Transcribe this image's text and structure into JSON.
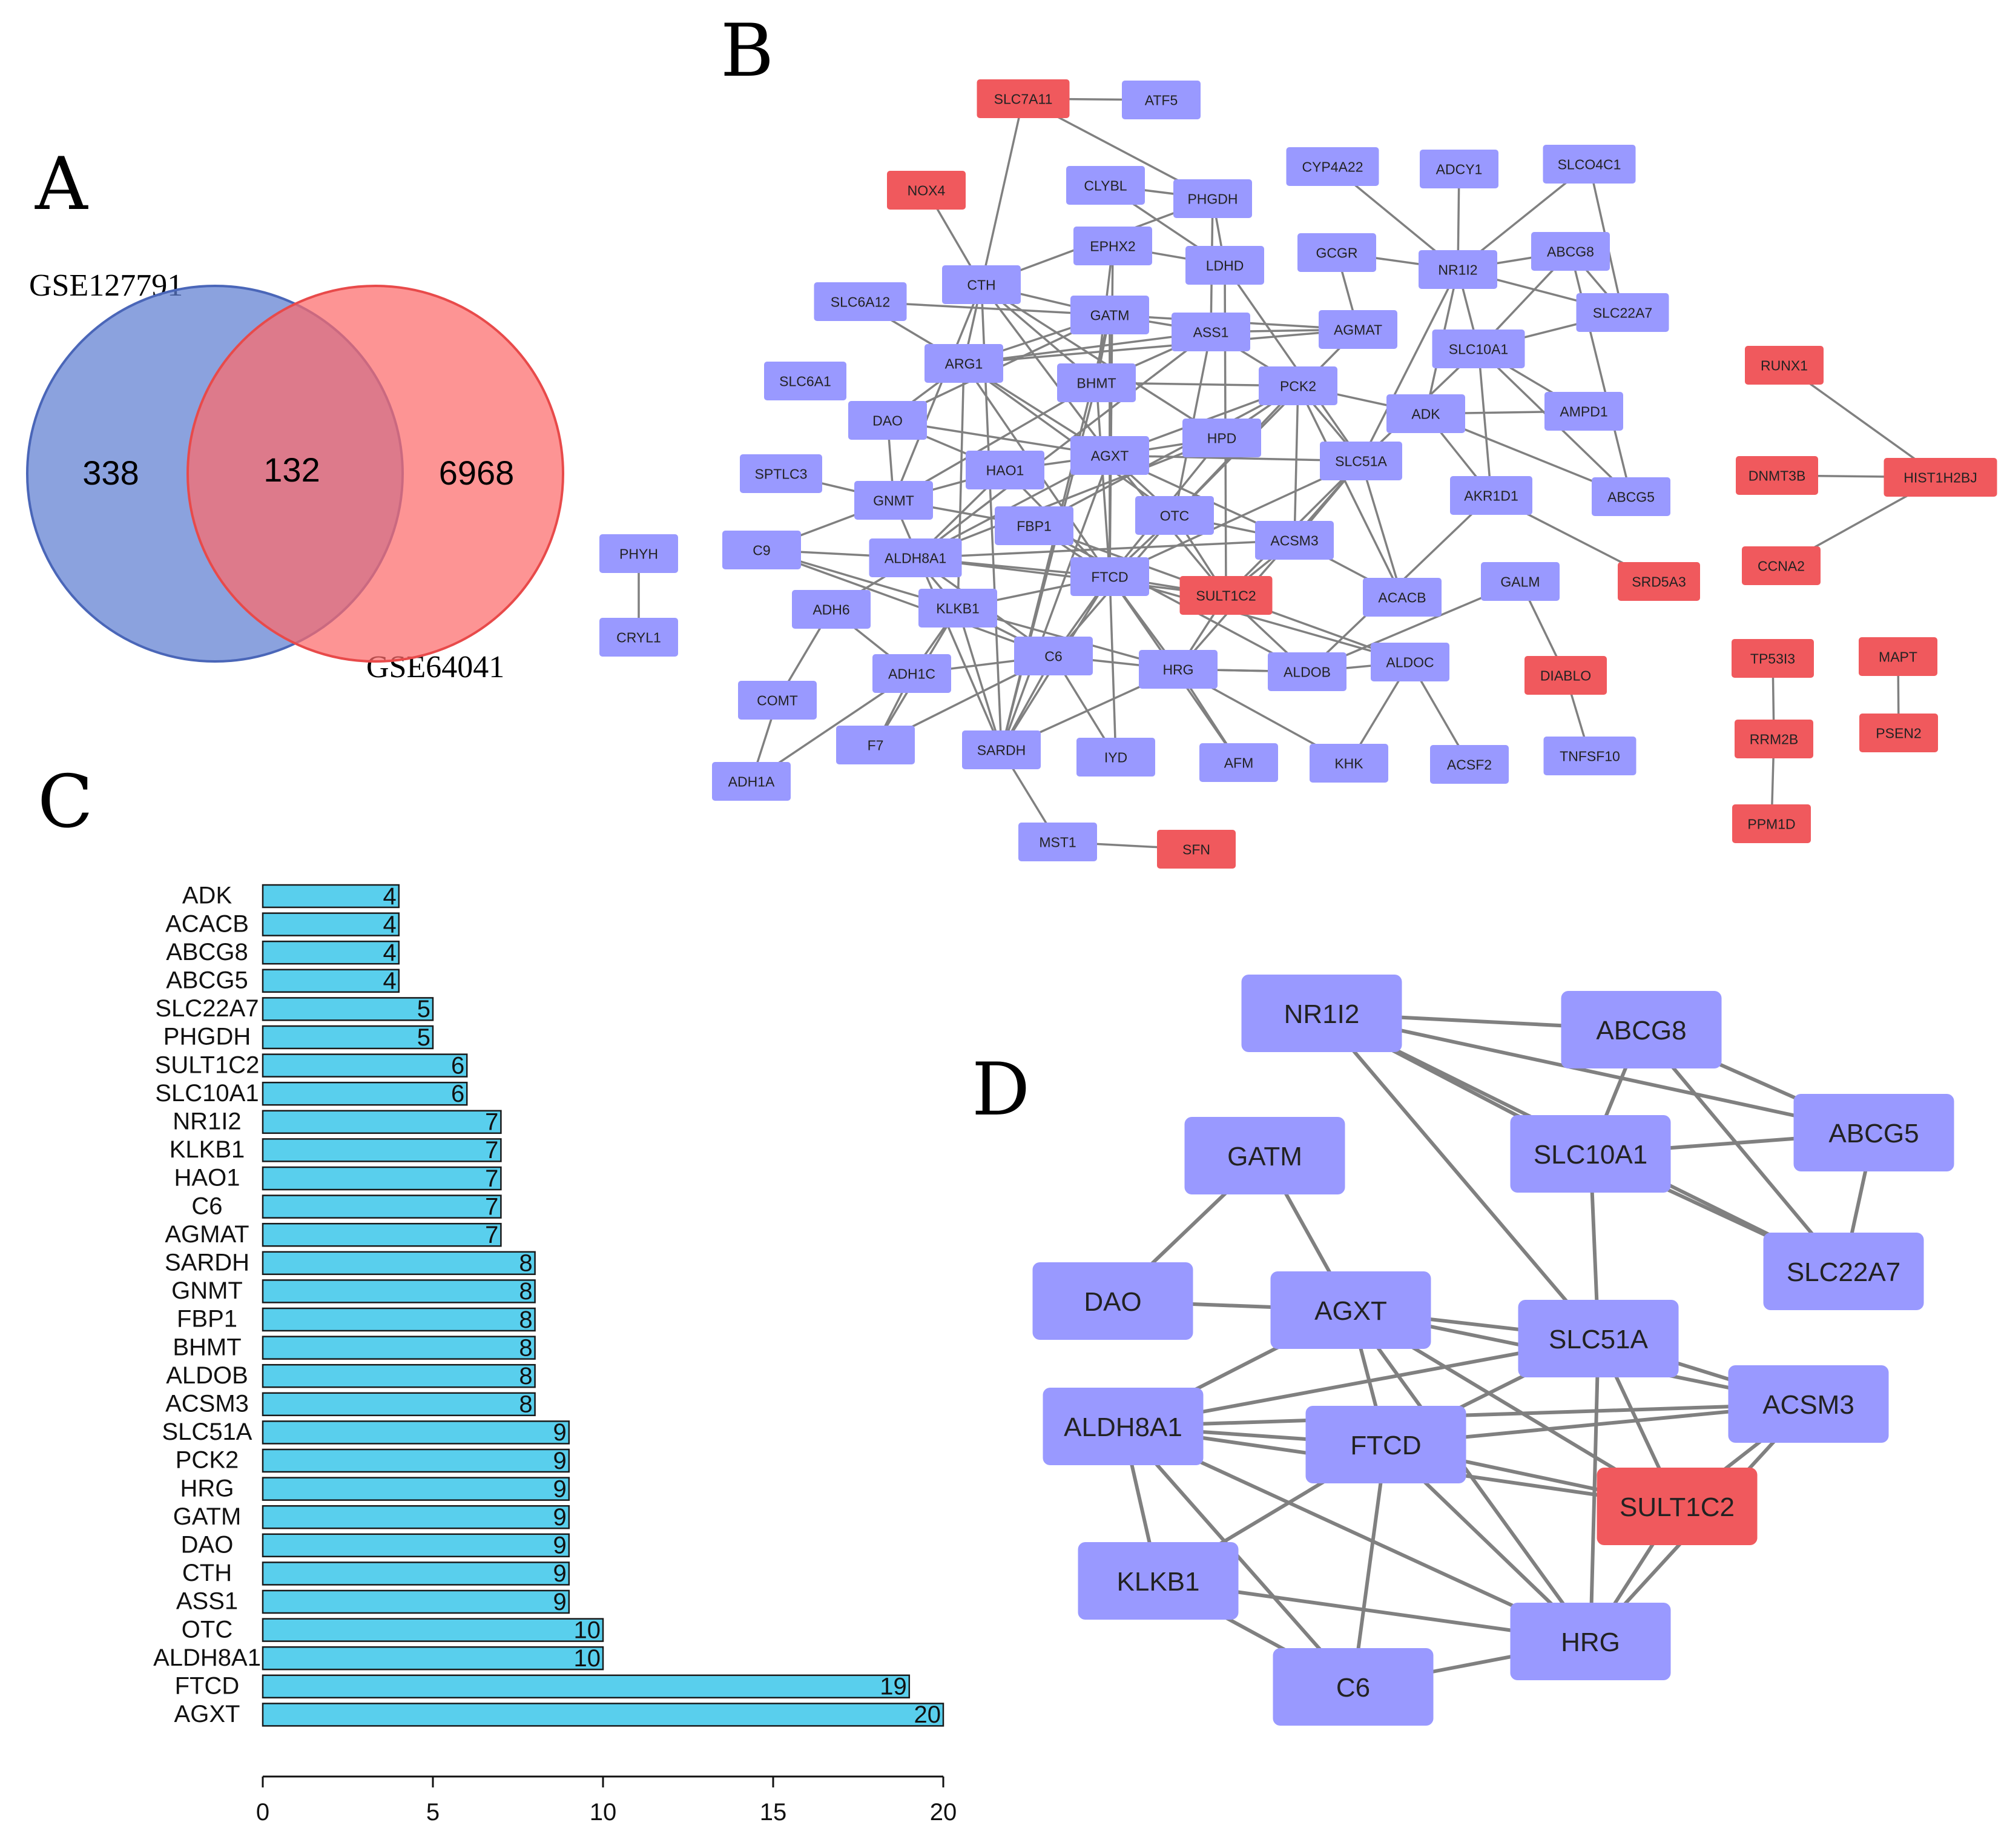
{
  "colors": {
    "purple": "#9999ff",
    "red": "#f0595d",
    "edge": "#808080",
    "bar": "#59cfed",
    "venn_blue": "#5e7ed1",
    "venn_red": "#fc6b6b"
  },
  "panels": {
    "a": "A",
    "b": "B",
    "c": "C",
    "d": "D"
  },
  "venn": {
    "left_label": "GSE127791",
    "right_label": "GSE64041",
    "left_only": "338",
    "overlap": "132",
    "right_only": "6968"
  },
  "network_b": {
    "nodes": [
      {
        "id": "SLC7A11",
        "c": "red"
      },
      {
        "id": "ATF5",
        "c": "purple"
      },
      {
        "id": "NOX4",
        "c": "red"
      },
      {
        "id": "CLYBL",
        "c": "purple"
      },
      {
        "id": "PHGDH",
        "c": "purple"
      },
      {
        "id": "CYP4A22",
        "c": "purple"
      },
      {
        "id": "ADCY1",
        "c": "purple"
      },
      {
        "id": "SLCO4C1",
        "c": "purple"
      },
      {
        "id": "EPHX2",
        "c": "purple"
      },
      {
        "id": "LDHD",
        "c": "purple"
      },
      {
        "id": "GCGR",
        "c": "purple"
      },
      {
        "id": "NR1I2",
        "c": "purple"
      },
      {
        "id": "ABCG8",
        "c": "purple"
      },
      {
        "id": "CTH",
        "c": "purple"
      },
      {
        "id": "SLC6A12",
        "c": "purple"
      },
      {
        "id": "GATM",
        "c": "purple"
      },
      {
        "id": "ASS1",
        "c": "purple"
      },
      {
        "id": "AGMAT",
        "c": "purple"
      },
      {
        "id": "SLC22A7",
        "c": "purple"
      },
      {
        "id": "SLC10A1",
        "c": "purple"
      },
      {
        "id": "ARG1",
        "c": "purple"
      },
      {
        "id": "SLC6A1",
        "c": "purple"
      },
      {
        "id": "BHMT",
        "c": "purple"
      },
      {
        "id": "PCK2",
        "c": "purple"
      },
      {
        "id": "RUNX1",
        "c": "red"
      },
      {
        "id": "DAO",
        "c": "purple"
      },
      {
        "id": "ADK",
        "c": "purple"
      },
      {
        "id": "AMPD1",
        "c": "purple"
      },
      {
        "id": "HPD",
        "c": "purple"
      },
      {
        "id": "SPTLC3",
        "c": "purple"
      },
      {
        "id": "HAO1",
        "c": "purple"
      },
      {
        "id": "AGXT",
        "c": "purple"
      },
      {
        "id": "SLC51A",
        "c": "purple"
      },
      {
        "id": "DNMT3B",
        "c": "red"
      },
      {
        "id": "HIST1H2BJ",
        "c": "red"
      },
      {
        "id": "GNMT",
        "c": "purple"
      },
      {
        "id": "AKR1D1",
        "c": "purple"
      },
      {
        "id": "ABCG5",
        "c": "purple"
      },
      {
        "id": "OTC",
        "c": "purple"
      },
      {
        "id": "FBP1",
        "c": "purple"
      },
      {
        "id": "ACSM3",
        "c": "purple"
      },
      {
        "id": "PHYH",
        "c": "purple"
      },
      {
        "id": "C9",
        "c": "purple"
      },
      {
        "id": "ALDH8A1",
        "c": "purple"
      },
      {
        "id": "CCNA2",
        "c": "red"
      },
      {
        "id": "FTCD",
        "c": "purple"
      },
      {
        "id": "GALM",
        "c": "purple"
      },
      {
        "id": "SULT1C2",
        "c": "red"
      },
      {
        "id": "ACACB",
        "c": "purple"
      },
      {
        "id": "SRD5A3",
        "c": "red"
      },
      {
        "id": "ADH6",
        "c": "purple"
      },
      {
        "id": "KLKB1",
        "c": "purple"
      },
      {
        "id": "CRYL1",
        "c": "purple"
      },
      {
        "id": "TP53I3",
        "c": "red"
      },
      {
        "id": "MAPT",
        "c": "red"
      },
      {
        "id": "C6",
        "c": "purple"
      },
      {
        "id": "HRG",
        "c": "purple"
      },
      {
        "id": "ALDOB",
        "c": "purple"
      },
      {
        "id": "ALDOC",
        "c": "purple"
      },
      {
        "id": "DIABLO",
        "c": "red"
      },
      {
        "id": "ADH1C",
        "c": "purple"
      },
      {
        "id": "COMT",
        "c": "purple"
      },
      {
        "id": "RRM2B",
        "c": "red"
      },
      {
        "id": "PSEN2",
        "c": "red"
      },
      {
        "id": "F7",
        "c": "purple"
      },
      {
        "id": "SARDH",
        "c": "purple"
      },
      {
        "id": "IYD",
        "c": "purple"
      },
      {
        "id": "AFM",
        "c": "purple"
      },
      {
        "id": "KHK",
        "c": "purple"
      },
      {
        "id": "ACSF2",
        "c": "purple"
      },
      {
        "id": "TNFSF10",
        "c": "purple"
      },
      {
        "id": "ADH1A",
        "c": "purple"
      },
      {
        "id": "PPM1D",
        "c": "red"
      },
      {
        "id": "MST1",
        "c": "purple"
      },
      {
        "id": "SFN",
        "c": "red"
      }
    ],
    "edges": [
      [
        "SLC7A11",
        "ATF5"
      ],
      [
        "SLC7A11",
        "CTH"
      ],
      [
        "SLC7A11",
        "PHGDH"
      ],
      [
        "NOX4",
        "CTH"
      ],
      [
        "PHYH",
        "CRYL1"
      ],
      [
        "RUNX1",
        "HIST1H2BJ"
      ],
      [
        "DNMT3B",
        "HIST1H2BJ"
      ],
      [
        "CCNA2",
        "HIST1H2BJ"
      ],
      [
        "TP53I3",
        "RRM2B"
      ],
      [
        "RRM2B",
        "PPM1D"
      ],
      [
        "MAPT",
        "PSEN2"
      ],
      [
        "MST1",
        "SFN"
      ],
      [
        "MST1",
        "SARDH"
      ],
      [
        "NR1I2",
        "ADCY1"
      ],
      [
        "NR1I2",
        "CYP4A22"
      ],
      [
        "NR1I2",
        "SLCO4C1"
      ],
      [
        "NR1I2",
        "ABCG8"
      ],
      [
        "NR1I2",
        "SLC22A7"
      ],
      [
        "NR1I2",
        "SLC10A1"
      ],
      [
        "NR1I2",
        "ADK"
      ],
      [
        "NR1I2",
        "SLC51A"
      ],
      [
        "NR1I2",
        "GCGR"
      ],
      [
        "ABCG8",
        "ABCG5"
      ],
      [
        "ABCG8",
        "SLC22A7"
      ],
      [
        "ABCG8",
        "SLC10A1"
      ],
      [
        "SLCO4C1",
        "SLC22A7"
      ],
      [
        "SLC10A1",
        "SLC22A7"
      ],
      [
        "SLC10A1",
        "AKR1D1"
      ],
      [
        "SLC10A1",
        "SLC51A"
      ],
      [
        "SLC10A1",
        "ABCG5"
      ],
      [
        "SLC10A1",
        "AMPD1"
      ],
      [
        "ADK",
        "AMPD1"
      ],
      [
        "ADK",
        "ABCG5"
      ],
      [
        "ADK",
        "PCK2"
      ],
      [
        "ADK",
        "AKR1D1"
      ],
      [
        "AKR1D1",
        "SRD5A3"
      ],
      [
        "AKR1D1",
        "ALDOB"
      ],
      [
        "GALM",
        "DIABLO"
      ],
      [
        "GALM",
        "ALDOB"
      ],
      [
        "ALDOC",
        "ACSF2"
      ],
      [
        "ALDOC",
        "KHK"
      ],
      [
        "ALDOC",
        "ALDOB"
      ],
      [
        "ALDOC",
        "FTCD"
      ],
      [
        "ALDOB",
        "FBP1"
      ],
      [
        "ALDOB",
        "HRG"
      ],
      [
        "PHGDH",
        "CTH"
      ],
      [
        "PHGDH",
        "ASS1"
      ],
      [
        "PHGDH",
        "LDHD"
      ],
      [
        "PHGDH",
        "CLYBL"
      ],
      [
        "CTH",
        "GATM"
      ],
      [
        "CTH",
        "BHMT"
      ],
      [
        "CTH",
        "ARG1"
      ],
      [
        "CTH",
        "GNMT"
      ],
      [
        "CTH",
        "SARDH"
      ],
      [
        "CTH",
        "AGXT"
      ],
      [
        "CTH",
        "HPD"
      ],
      [
        "SLC6A12",
        "GATM"
      ],
      [
        "SLC6A12",
        "ARG1"
      ],
      [
        "GATM",
        "ASS1"
      ],
      [
        "GATM",
        "AGXT"
      ],
      [
        "GATM",
        "DAO"
      ],
      [
        "GATM",
        "BHMT"
      ],
      [
        "GATM",
        "AGMAT"
      ],
      [
        "GATM",
        "ARG1"
      ],
      [
        "GATM",
        "FTCD"
      ],
      [
        "ASS1",
        "ARG1"
      ],
      [
        "ASS1",
        "OTC"
      ],
      [
        "ASS1",
        "AGMAT"
      ],
      [
        "ASS1",
        "PCK2"
      ],
      [
        "ASS1",
        "BHMT"
      ],
      [
        "ASS1",
        "ALDH8A1"
      ],
      [
        "AGMAT",
        "ARG1"
      ],
      [
        "AGMAT",
        "OTC"
      ],
      [
        "ARG1",
        "OTC"
      ],
      [
        "ARG1",
        "DAO"
      ],
      [
        "ARG1",
        "AGXT"
      ],
      [
        "ARG1",
        "FTCD"
      ],
      [
        "ARG1",
        "KLKB1"
      ],
      [
        "BHMT",
        "GNMT"
      ],
      [
        "BHMT",
        "SARDH"
      ],
      [
        "BHMT",
        "FTCD"
      ],
      [
        "BHMT",
        "EPHX2"
      ],
      [
        "BHMT",
        "PCK2"
      ],
      [
        "DAO",
        "AGXT"
      ],
      [
        "DAO",
        "HAO1"
      ],
      [
        "DAO",
        "GNMT"
      ],
      [
        "AGXT",
        "HAO1"
      ],
      [
        "AGXT",
        "SLC51A"
      ],
      [
        "AGXT",
        "FTCD"
      ],
      [
        "AGXT",
        "ALDH8A1"
      ],
      [
        "AGXT",
        "SULT1C2"
      ],
      [
        "AGXT",
        "OTC"
      ],
      [
        "AGXT",
        "HPD"
      ],
      [
        "AGXT",
        "ACSM3"
      ],
      [
        "AGXT",
        "PCK2"
      ],
      [
        "HAO1",
        "GNMT"
      ],
      [
        "HAO1",
        "ALDH8A1"
      ],
      [
        "HAO1",
        "FTCD"
      ],
      [
        "GNMT",
        "SARDH"
      ],
      [
        "GNMT",
        "C9"
      ],
      [
        "GNMT",
        "FBP1"
      ],
      [
        "SLC51A",
        "ACSM3"
      ],
      [
        "SLC51A",
        "FTCD"
      ],
      [
        "SLC51A",
        "SULT1C2"
      ],
      [
        "SLC51A",
        "HRG"
      ],
      [
        "SLC51A",
        "ACACB"
      ],
      [
        "SLC51A",
        "PCK2"
      ],
      [
        "PCK2",
        "HPD"
      ],
      [
        "PCK2",
        "FBP1"
      ],
      [
        "PCK2",
        "ACACB"
      ],
      [
        "PCK2",
        "OTC"
      ],
      [
        "PCK2",
        "ACSM3"
      ],
      [
        "HPD",
        "FTCD"
      ],
      [
        "HPD",
        "ALDH8A1"
      ],
      [
        "ALDH8A1",
        "FTCD"
      ],
      [
        "ALDH8A1",
        "SULT1C2"
      ],
      [
        "ALDH8A1",
        "ACSM3"
      ],
      [
        "ALDH8A1",
        "KLKB1"
      ],
      [
        "ALDH8A1",
        "C6"
      ],
      [
        "ALDH8A1",
        "ADH6"
      ],
      [
        "FTCD",
        "SULT1C2"
      ],
      [
        "FTCD",
        "HRG"
      ],
      [
        "FTCD",
        "C6"
      ],
      [
        "FTCD",
        "KLKB1"
      ],
      [
        "FTCD",
        "SARDH"
      ],
      [
        "FTCD",
        "IYD"
      ],
      [
        "FTCD",
        "AFM"
      ],
      [
        "SULT1C2",
        "HRG"
      ],
      [
        "SULT1C2",
        "ACSM3"
      ],
      [
        "SULT1C2",
        "ALDOB"
      ],
      [
        "SULT1C2",
        "LDHD"
      ],
      [
        "ACSM3",
        "ACACB"
      ],
      [
        "KLKB1",
        "C6"
      ],
      [
        "KLKB1",
        "HRG"
      ],
      [
        "KLKB1",
        "SARDH"
      ],
      [
        "KLKB1",
        "ADH1C"
      ],
      [
        "KLKB1",
        "C9"
      ],
      [
        "C6",
        "HRG"
      ],
      [
        "C6",
        "SARDH"
      ],
      [
        "C6",
        "C9"
      ],
      [
        "C6",
        "ADH1C"
      ],
      [
        "HRG",
        "AFM"
      ],
      [
        "HRG",
        "KHK"
      ],
      [
        "HRG",
        "ALDOB"
      ],
      [
        "HRG",
        "SARDH"
      ],
      [
        "ADH6",
        "COMT"
      ],
      [
        "ADH6",
        "ADH1C"
      ],
      [
        "ADH1C",
        "ADH1A"
      ],
      [
        "ADH1C",
        "F7"
      ],
      [
        "COMT",
        "ADH1A"
      ],
      [
        "F7",
        "KLKB1"
      ],
      [
        "F7",
        "C6"
      ],
      [
        "EPHX2",
        "LDHD"
      ],
      [
        "EPHX2",
        "FTCD"
      ],
      [
        "LDHD",
        "SLC51A"
      ],
      [
        "GCGR",
        "AGMAT"
      ],
      [
        "CLYBL",
        "LDHD"
      ],
      [
        "C9",
        "ALDH8A1"
      ],
      [
        "SPTLC3",
        "GNMT"
      ],
      [
        "IYD",
        "C6"
      ],
      [
        "TNFSF10",
        "DIABLO"
      ],
      [
        "OTC",
        "FTCD"
      ],
      [
        "OTC",
        "ACSM3"
      ],
      [
        "OTC",
        "SULT1C2"
      ],
      [
        "OTC",
        "C6"
      ],
      [
        "FBP1",
        "FTCD"
      ],
      [
        "FBP1",
        "ALDOC"
      ],
      [
        "SARDH",
        "GATM"
      ],
      [
        "SARDH",
        "AGXT"
      ]
    ]
  },
  "chart_data": {
    "type": "bar",
    "orientation": "horizontal",
    "categories": [
      "ADK",
      "ACACB",
      "ABCG8",
      "ABCG5",
      "SLC22A7",
      "PHGDH",
      "SULT1C2",
      "SLC10A1",
      "NR1I2",
      "KLKB1",
      "HAO1",
      "C6",
      "AGMAT",
      "SARDH",
      "GNMT",
      "FBP1",
      "BHMT",
      "ALDOB",
      "ACSM3",
      "SLC51A",
      "PCK2",
      "HRG",
      "GATM",
      "DAO",
      "CTH",
      "ASS1",
      "OTC",
      "ALDH8A1",
      "FTCD",
      "AGXT"
    ],
    "values": [
      4,
      4,
      4,
      4,
      5,
      5,
      6,
      6,
      7,
      7,
      7,
      7,
      7,
      8,
      8,
      8,
      8,
      8,
      8,
      9,
      9,
      9,
      9,
      9,
      9,
      9,
      10,
      10,
      19,
      20
    ],
    "xlim": [
      0,
      20
    ],
    "xticks": [
      "0",
      "5",
      "10",
      "15",
      "20"
    ],
    "title": "",
    "xlabel": "",
    "ylabel": ""
  },
  "network_d": {
    "nodes": [
      {
        "id": "NR1I2",
        "c": "purple"
      },
      {
        "id": "ABCG8",
        "c": "purple"
      },
      {
        "id": "ABCG5",
        "c": "purple"
      },
      {
        "id": "GATM",
        "c": "purple"
      },
      {
        "id": "SLC10A1",
        "c": "purple"
      },
      {
        "id": "SLC22A7",
        "c": "purple"
      },
      {
        "id": "DAO",
        "c": "purple"
      },
      {
        "id": "AGXT",
        "c": "purple"
      },
      {
        "id": "SLC51A",
        "c": "purple"
      },
      {
        "id": "ACSM3",
        "c": "purple"
      },
      {
        "id": "ALDH8A1",
        "c": "purple"
      },
      {
        "id": "FTCD",
        "c": "purple"
      },
      {
        "id": "SULT1C2",
        "c": "red"
      },
      {
        "id": "KLKB1",
        "c": "purple"
      },
      {
        "id": "HRG",
        "c": "purple"
      },
      {
        "id": "C6",
        "c": "purple"
      }
    ],
    "edges": [
      [
        "NR1I2",
        "ABCG8"
      ],
      [
        "NR1I2",
        "ABCG5"
      ],
      [
        "NR1I2",
        "SLC10A1"
      ],
      [
        "NR1I2",
        "SLC22A7"
      ],
      [
        "NR1I2",
        "SLC51A"
      ],
      [
        "ABCG8",
        "SLC10A1"
      ],
      [
        "ABCG8",
        "ABCG5"
      ],
      [
        "ABCG8",
        "SLC22A7"
      ],
      [
        "ABCG5",
        "SLC10A1"
      ],
      [
        "ABCG5",
        "SLC22A7"
      ],
      [
        "SLC10A1",
        "SLC22A7"
      ],
      [
        "SLC10A1",
        "SLC51A"
      ],
      [
        "GATM",
        "DAO"
      ],
      [
        "GATM",
        "AGXT"
      ],
      [
        "DAO",
        "AGXT"
      ],
      [
        "AGXT",
        "SLC51A"
      ],
      [
        "AGXT",
        "ACSM3"
      ],
      [
        "AGXT",
        "ALDH8A1"
      ],
      [
        "AGXT",
        "FTCD"
      ],
      [
        "AGXT",
        "SULT1C2"
      ],
      [
        "AGXT",
        "HRG"
      ],
      [
        "SLC51A",
        "ALDH8A1"
      ],
      [
        "SLC51A",
        "FTCD"
      ],
      [
        "SLC51A",
        "ACSM3"
      ],
      [
        "SLC51A",
        "SULT1C2"
      ],
      [
        "SLC51A",
        "HRG"
      ],
      [
        "ACSM3",
        "ALDH8A1"
      ],
      [
        "ACSM3",
        "FTCD"
      ],
      [
        "ACSM3",
        "SULT1C2"
      ],
      [
        "ACSM3",
        "HRG"
      ],
      [
        "ALDH8A1",
        "FTCD"
      ],
      [
        "ALDH8A1",
        "SULT1C2"
      ],
      [
        "ALDH8A1",
        "KLKB1"
      ],
      [
        "ALDH8A1",
        "C6"
      ],
      [
        "ALDH8A1",
        "HRG"
      ],
      [
        "FTCD",
        "SULT1C2"
      ],
      [
        "FTCD",
        "KLKB1"
      ],
      [
        "FTCD",
        "C6"
      ],
      [
        "FTCD",
        "HRG"
      ],
      [
        "SULT1C2",
        "HRG"
      ],
      [
        "KLKB1",
        "C6"
      ],
      [
        "KLKB1",
        "HRG"
      ],
      [
        "C6",
        "HRG"
      ]
    ]
  }
}
